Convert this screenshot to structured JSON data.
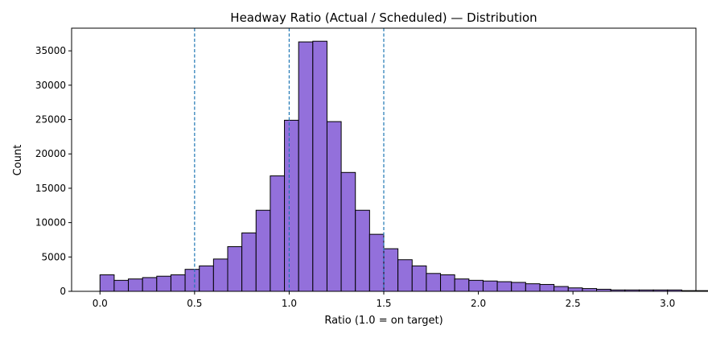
{
  "chart_data": {
    "type": "bar",
    "title": "Headway Ratio (Actual / Scheduled) — Distribution",
    "xlabel": "Ratio (1.0 = on target)",
    "ylabel": "Count",
    "xlim": [
      -0.15,
      3.15
    ],
    "ylim": [
      0,
      38300
    ],
    "bin_width": 0.075,
    "bin_start": 0.0,
    "values": [
      2400,
      1600,
      1800,
      2000,
      2200,
      2400,
      3200,
      3700,
      4700,
      6500,
      8500,
      11800,
      16800,
      24900,
      36300,
      36400,
      24700,
      17300,
      11800,
      8300,
      6200,
      4600,
      3700,
      2600,
      2400,
      1800,
      1600,
      1500,
      1400,
      1300,
      1100,
      1000,
      700,
      500,
      400,
      300,
      200,
      200,
      200,
      200,
      200,
      100,
      100,
      100,
      900
    ],
    "x_ticks": [
      0.0,
      0.5,
      1.0,
      1.5,
      2.0,
      2.5,
      3.0
    ],
    "x_tick_labels": [
      "0.0",
      "0.5",
      "1.0",
      "1.5",
      "2.0",
      "2.5",
      "3.0"
    ],
    "y_ticks": [
      0,
      5000,
      10000,
      15000,
      20000,
      25000,
      30000,
      35000
    ],
    "y_tick_labels": [
      "0",
      "5000",
      "10000",
      "15000",
      "20000",
      "25000",
      "30000",
      "35000"
    ],
    "reference_lines": [
      0.5,
      1.0,
      1.5
    ],
    "bar_color": "#9370db",
    "bar_edge_color": "#000000",
    "reference_line_color": "#1f77b4",
    "grid": false
  }
}
